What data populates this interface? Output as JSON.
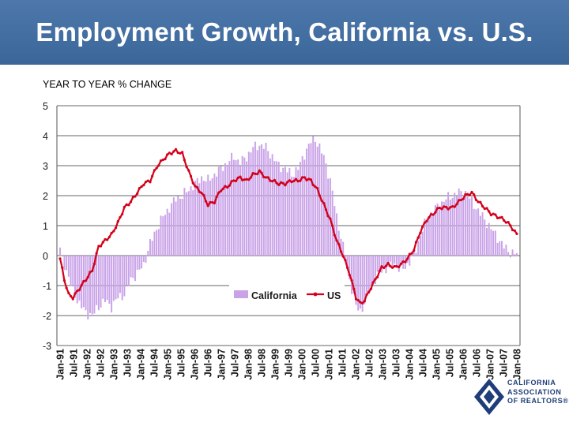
{
  "header": {
    "title": "Employment Growth, California vs. U.S."
  },
  "chart_data": {
    "type": "bar+line",
    "subtitle": "YEAR TO YEAR % CHANGE",
    "ylim": [
      -3,
      5
    ],
    "yticks": [
      "5",
      "4",
      "3",
      "2",
      "1",
      "0",
      "-1",
      "-2",
      "-3"
    ],
    "xticks": [
      "Jan-91",
      "Jul-91",
      "Jan-92",
      "Jul-92",
      "Jan-93",
      "Jul-93",
      "Jan-94",
      "Jul-94",
      "Jan-95",
      "Jul-95",
      "Jan-96",
      "Jul-96",
      "Jan-97",
      "Jul-97",
      "Jan-98",
      "Jul-98",
      "Jan-99",
      "Jul-99",
      "Jan-00",
      "Jul-00",
      "Jan-01",
      "Jul-01",
      "Jan-02",
      "Jul-02",
      "Jan-03",
      "Jul-03",
      "Jan-04",
      "Jul-04",
      "Jan-05",
      "Jul-05",
      "Jan-06",
      "Jul-06",
      "Jan-07",
      "Jul-07",
      "Jan-08"
    ],
    "grid": "horizontal",
    "legend": {
      "position": "center",
      "entries": [
        "California",
        "US"
      ]
    },
    "series": [
      {
        "name": "California",
        "type": "bar",
        "color": "#c9a2e8",
        "anchors": [
          [
            0,
            0.2
          ],
          [
            1,
            -0.1
          ],
          [
            3,
            -0.5
          ],
          [
            6,
            -1.2
          ],
          [
            9,
            -1.6
          ],
          [
            12,
            -1.9
          ],
          [
            15,
            -2.0
          ],
          [
            18,
            -1.7
          ],
          [
            21,
            -1.5
          ],
          [
            24,
            -1.7
          ],
          [
            27,
            -1.4
          ],
          [
            30,
            -1.3
          ],
          [
            33,
            -0.8
          ],
          [
            36,
            -0.6
          ],
          [
            39,
            -0.3
          ],
          [
            42,
            0.4
          ],
          [
            45,
            0.9
          ],
          [
            48,
            1.3
          ],
          [
            51,
            1.6
          ],
          [
            54,
            1.9
          ],
          [
            57,
            2.0
          ],
          [
            60,
            2.2
          ],
          [
            63,
            2.4
          ],
          [
            66,
            2.6
          ],
          [
            69,
            2.5
          ],
          [
            72,
            2.7
          ],
          [
            75,
            2.9
          ],
          [
            78,
            3.1
          ],
          [
            81,
            3.3
          ],
          [
            84,
            3.1
          ],
          [
            87,
            3.3
          ],
          [
            90,
            3.6
          ],
          [
            93,
            3.7
          ],
          [
            96,
            3.6
          ],
          [
            99,
            3.3
          ],
          [
            102,
            3.0
          ],
          [
            105,
            2.9
          ],
          [
            108,
            2.7
          ],
          [
            111,
            2.9
          ],
          [
            114,
            3.4
          ],
          [
            117,
            3.8
          ],
          [
            119,
            3.9
          ],
          [
            121,
            3.6
          ],
          [
            123,
            3.3
          ],
          [
            126,
            2.5
          ],
          [
            129,
            1.3
          ],
          [
            132,
            0.3
          ],
          [
            135,
            -0.8
          ],
          [
            138,
            -1.7
          ],
          [
            140,
            -1.85
          ],
          [
            142,
            -1.6
          ],
          [
            144,
            -1.2
          ],
          [
            147,
            -0.8
          ],
          [
            150,
            -0.5
          ],
          [
            153,
            -0.4
          ],
          [
            156,
            -0.3
          ],
          [
            159,
            -0.5
          ],
          [
            162,
            -0.3
          ],
          [
            165,
            0.0
          ],
          [
            168,
            0.7
          ],
          [
            171,
            1.2
          ],
          [
            174,
            1.5
          ],
          [
            177,
            1.7
          ],
          [
            180,
            1.9
          ],
          [
            183,
            2.0
          ],
          [
            186,
            2.1
          ],
          [
            189,
            2.1
          ],
          [
            192,
            1.8
          ],
          [
            195,
            1.5
          ],
          [
            198,
            1.2
          ],
          [
            201,
            0.9
          ],
          [
            204,
            0.6
          ],
          [
            207,
            0.3
          ],
          [
            210,
            0.1
          ],
          [
            213,
            0.05
          ]
        ]
      },
      {
        "name": "US",
        "type": "line",
        "color": "#d4001a",
        "anchors": [
          [
            0,
            -0.1
          ],
          [
            2,
            -0.8
          ],
          [
            4,
            -1.3
          ],
          [
            6,
            -1.4
          ],
          [
            9,
            -1.1
          ],
          [
            12,
            -0.8
          ],
          [
            15,
            -0.5
          ],
          [
            18,
            0.3
          ],
          [
            21,
            0.5
          ],
          [
            24,
            0.7
          ],
          [
            27,
            1.1
          ],
          [
            30,
            1.6
          ],
          [
            33,
            1.8
          ],
          [
            36,
            2.1
          ],
          [
            39,
            2.4
          ],
          [
            42,
            2.5
          ],
          [
            45,
            2.95
          ],
          [
            48,
            3.2
          ],
          [
            51,
            3.4
          ],
          [
            54,
            3.5
          ],
          [
            57,
            3.4
          ],
          [
            60,
            2.8
          ],
          [
            63,
            2.3
          ],
          [
            66,
            2.1
          ],
          [
            69,
            1.7
          ],
          [
            72,
            1.8
          ],
          [
            75,
            2.2
          ],
          [
            78,
            2.3
          ],
          [
            81,
            2.5
          ],
          [
            84,
            2.6
          ],
          [
            87,
            2.5
          ],
          [
            90,
            2.7
          ],
          [
            93,
            2.8
          ],
          [
            96,
            2.6
          ],
          [
            99,
            2.5
          ],
          [
            102,
            2.4
          ],
          [
            105,
            2.4
          ],
          [
            108,
            2.5
          ],
          [
            111,
            2.5
          ],
          [
            114,
            2.6
          ],
          [
            117,
            2.5
          ],
          [
            120,
            2.2
          ],
          [
            123,
            1.7
          ],
          [
            126,
            1.2
          ],
          [
            129,
            0.5
          ],
          [
            132,
            0.0
          ],
          [
            135,
            -0.6
          ],
          [
            138,
            -1.4
          ],
          [
            140,
            -1.6
          ],
          [
            142,
            -1.5
          ],
          [
            144,
            -1.2
          ],
          [
            147,
            -0.8
          ],
          [
            150,
            -0.4
          ],
          [
            153,
            -0.3
          ],
          [
            156,
            -0.4
          ],
          [
            159,
            -0.3
          ],
          [
            162,
            -0.1
          ],
          [
            165,
            0.2
          ],
          [
            168,
            0.8
          ],
          [
            171,
            1.2
          ],
          [
            174,
            1.4
          ],
          [
            177,
            1.6
          ],
          [
            180,
            1.6
          ],
          [
            183,
            1.6
          ],
          [
            186,
            1.8
          ],
          [
            189,
            2.0
          ],
          [
            192,
            2.1
          ],
          [
            195,
            1.8
          ],
          [
            198,
            1.6
          ],
          [
            201,
            1.4
          ],
          [
            204,
            1.3
          ],
          [
            207,
            1.2
          ],
          [
            210,
            1.0
          ],
          [
            213,
            0.7
          ]
        ]
      }
    ]
  },
  "logo": {
    "lines": [
      "CALIFORNIA",
      "ASSOCIATION",
      "OF REALTORS®"
    ]
  }
}
